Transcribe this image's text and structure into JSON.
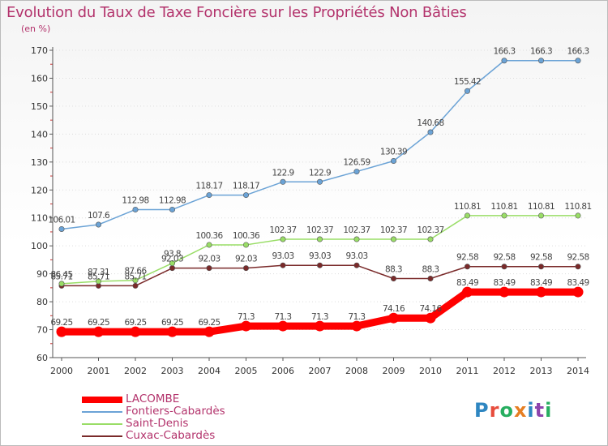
{
  "title": "Evolution du Taux de Taxe Foncière sur les Propriétés Non Bâties",
  "unit_label": "(en %)",
  "logo_text": "Proxiti",
  "colors": {
    "title": "#b3336c",
    "axis": "#555555",
    "grid": "#dddddd",
    "logo": [
      "#2e86c1",
      "#e74c3c",
      "#27ae60",
      "#e67e22",
      "#2e86c1",
      "#8e44ad",
      "#27ae60"
    ]
  },
  "chart_data": {
    "type": "line",
    "title": "Evolution du Taux de Taxe Foncière sur les Propriétés Non Bâties",
    "ylabel": "(en %)",
    "ylim": [
      60,
      170
    ],
    "yticks": [
      60,
      70,
      80,
      90,
      100,
      110,
      120,
      130,
      140,
      150,
      160,
      170
    ],
    "grid": "horizontal dotted",
    "legend_position": "bottom-left",
    "categories": [
      "2000",
      "2001",
      "2002",
      "2003",
      "2004",
      "2005",
      "2006",
      "2007",
      "2008",
      "2009",
      "2010",
      "2011",
      "2012",
      "2013",
      "2014"
    ],
    "series": [
      {
        "name": "LACOMBE",
        "color": "#ff0000",
        "values": [
          69.25,
          69.25,
          69.25,
          69.25,
          69.25,
          71.3,
          71.3,
          71.3,
          71.3,
          74.16,
          74.16,
          83.49,
          83.49,
          83.49,
          83.49
        ],
        "labels": [
          "69.25",
          "69.25",
          "69.25",
          "69.25",
          "69.25",
          "71.3",
          "71.3",
          "71.3",
          "71.3",
          "74.16",
          "74.16",
          "83.49",
          "83.49",
          "83.49",
          "83.49"
        ]
      },
      {
        "name": "Fontiers-Cabardès",
        "color": "#6ba3d6",
        "values": [
          106.01,
          107.6,
          112.98,
          112.98,
          118.17,
          118.17,
          122.9,
          122.9,
          126.59,
          130.39,
          140.68,
          155.42,
          166.3,
          166.3,
          166.3
        ],
        "labels": [
          "106.01",
          "107.6",
          "112.98",
          "112.98",
          "118.17",
          "118.17",
          "122.9",
          "122.9",
          "126.59",
          "130.39",
          "140.68",
          "155.42",
          "166.3",
          "166.3",
          "166.3"
        ]
      },
      {
        "name": "Saint-Denis",
        "color": "#99dd66",
        "values": [
          86.45,
          87.31,
          87.66,
          93.8,
          100.36,
          100.36,
          102.37,
          102.37,
          102.37,
          102.37,
          102.37,
          110.81,
          110.81,
          110.81,
          110.81
        ],
        "labels": [
          "86.45",
          "87.31",
          "87.66",
          "93.8",
          "100.36",
          "100.36",
          "102.37",
          "102.37",
          "102.37",
          "102.37",
          "102.37",
          "110.81",
          "110.81",
          "110.81",
          "110.81"
        ]
      },
      {
        "name": "Cuxac-Cabardès",
        "color": "#7a2a2a",
        "values": [
          85.71,
          85.71,
          85.71,
          92.03,
          92.03,
          92.03,
          93.03,
          93.03,
          93.03,
          88.3,
          88.3,
          92.58,
          92.58,
          92.58,
          92.58
        ],
        "labels": [
          "85.71",
          "85.71",
          "85.71",
          "92.03",
          "92.03",
          "92.03",
          "93.03",
          "93.03",
          "93.03",
          "88.3",
          "88.3",
          "92.58",
          "92.58",
          "92.58",
          "92.58"
        ]
      }
    ]
  }
}
